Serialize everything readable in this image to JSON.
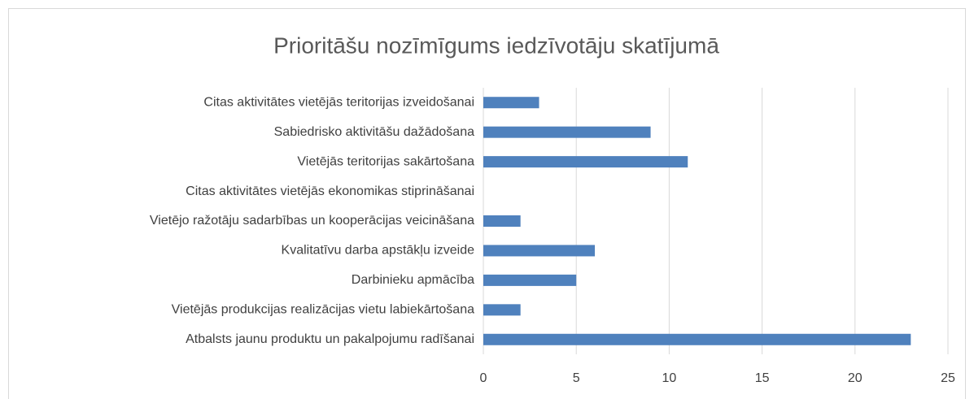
{
  "chart_data": {
    "type": "hbar",
    "title": "Prioritāšu nozīmīgums iedzīvotāju skatījumā",
    "categories": [
      "Citas aktivitātes vietējās teritorijas izveidošanai",
      "Sabiedrisko aktivitāšu dažādošana",
      "Vietējās teritorijas sakārtošana",
      "Citas aktivitātes vietējās ekonomikas stiprināšanai",
      "Vietējo ražotāju sadarbības un kooperācijas veicināšana",
      "Kvalitatīvu darba apstākļu izveide",
      "Darbinieku apmācība",
      "Vietējās produkcijas realizācijas vietu labiekārtošana",
      "Atbalsts jaunu produktu un pakalpojumu radīšanai"
    ],
    "values": [
      3,
      9,
      11,
      0,
      2,
      6,
      5,
      2,
      23
    ],
    "color": "#4f81bd",
    "xlim": [
      0,
      25
    ],
    "xticks": [
      0,
      5,
      10,
      15,
      20,
      25
    ],
    "grid": true
  }
}
